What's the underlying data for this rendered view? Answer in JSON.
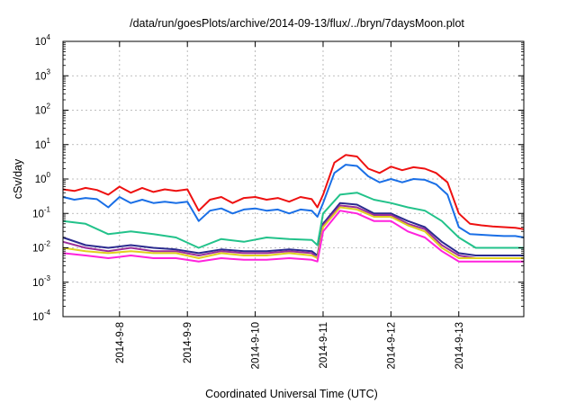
{
  "chart_data": {
    "type": "line",
    "title": "/data/run/goesPlots/archive/2014-09-13/flux/../bryn/7daysMoon.plot",
    "xlabel": "Coordinated Universal Time (UTC)",
    "ylabel": "cSv/day",
    "yscale": "log",
    "ylim": [
      0.0001,
      10000
    ],
    "xlim": [
      "2014-09-07T04:00",
      "2014-09-13T23:00"
    ],
    "grid": true,
    "y_ticks": [
      {
        "base": "10",
        "exp": "-4",
        "value": 0.0001
      },
      {
        "base": "10",
        "exp": "-3",
        "value": 0.001
      },
      {
        "base": "10",
        "exp": "-2",
        "value": 0.01
      },
      {
        "base": "10",
        "exp": "-1",
        "value": 0.1
      },
      {
        "base": "10",
        "exp": "0",
        "value": 1
      },
      {
        "base": "10",
        "exp": "1",
        "value": 10
      },
      {
        "base": "10",
        "exp": "2",
        "value": 100
      },
      {
        "base": "10",
        "exp": "3",
        "value": 1000
      },
      {
        "base": "10",
        "exp": "4",
        "value": 10000
      }
    ],
    "x_ticks": [
      {
        "label": "2014-9-8",
        "value": "2014-09-08T00:00"
      },
      {
        "label": "2014-9-9",
        "value": "2014-09-09T00:00"
      },
      {
        "label": "2014-9-10",
        "value": "2014-09-10T00:00"
      },
      {
        "label": "2014-9-11",
        "value": "2014-09-11T00:00"
      },
      {
        "label": "2014-9-12",
        "value": "2014-09-12T00:00"
      },
      {
        "label": "2014-9-13",
        "value": "2014-09-13T00:00"
      }
    ],
    "series": [
      {
        "color": "#ee1111",
        "x": [
          "2014-09-07T04:00",
          "2014-09-07T08:00",
          "2014-09-07T12:00",
          "2014-09-07T16:00",
          "2014-09-07T20:00",
          "2014-09-08T00:00",
          "2014-09-08T04:00",
          "2014-09-08T08:00",
          "2014-09-08T12:00",
          "2014-09-08T16:00",
          "2014-09-08T20:00",
          "2014-09-09T00:00",
          "2014-09-09T04:00",
          "2014-09-09T08:00",
          "2014-09-09T12:00",
          "2014-09-09T16:00",
          "2014-09-09T20:00",
          "2014-09-10T00:00",
          "2014-09-10T04:00",
          "2014-09-10T08:00",
          "2014-09-10T12:00",
          "2014-09-10T16:00",
          "2014-09-10T20:00",
          "2014-09-10T22:00",
          "2014-09-11T00:00",
          "2014-09-11T04:00",
          "2014-09-11T08:00",
          "2014-09-11T12:00",
          "2014-09-11T16:00",
          "2014-09-11T20:00",
          "2014-09-12T00:00",
          "2014-09-12T04:00",
          "2014-09-12T08:00",
          "2014-09-12T12:00",
          "2014-09-12T16:00",
          "2014-09-12T20:00",
          "2014-09-13T00:00",
          "2014-09-13T04:00",
          "2014-09-13T08:00",
          "2014-09-13T12:00",
          "2014-09-13T16:00",
          "2014-09-13T20:00",
          "2014-09-13T23:00"
        ],
        "y": [
          0.5,
          0.45,
          0.55,
          0.48,
          0.35,
          0.6,
          0.4,
          0.55,
          0.42,
          0.5,
          0.45,
          0.5,
          0.12,
          0.25,
          0.3,
          0.2,
          0.28,
          0.3,
          0.25,
          0.28,
          0.22,
          0.3,
          0.26,
          0.15,
          0.35,
          3.0,
          5.0,
          4.5,
          2.0,
          1.5,
          2.3,
          1.8,
          2.2,
          2.0,
          1.5,
          0.8,
          0.1,
          0.05,
          0.045,
          0.042,
          0.04,
          0.038,
          0.035
        ]
      },
      {
        "color": "#1a6fe6",
        "x": [
          "2014-09-07T04:00",
          "2014-09-07T08:00",
          "2014-09-07T12:00",
          "2014-09-07T16:00",
          "2014-09-07T20:00",
          "2014-09-08T00:00",
          "2014-09-08T04:00",
          "2014-09-08T08:00",
          "2014-09-08T12:00",
          "2014-09-08T16:00",
          "2014-09-08T20:00",
          "2014-09-09T00:00",
          "2014-09-09T04:00",
          "2014-09-09T08:00",
          "2014-09-09T12:00",
          "2014-09-09T16:00",
          "2014-09-09T20:00",
          "2014-09-10T00:00",
          "2014-09-10T04:00",
          "2014-09-10T08:00",
          "2014-09-10T12:00",
          "2014-09-10T16:00",
          "2014-09-10T20:00",
          "2014-09-10T22:00",
          "2014-09-11T00:00",
          "2014-09-11T04:00",
          "2014-09-11T08:00",
          "2014-09-11T12:00",
          "2014-09-11T16:00",
          "2014-09-11T20:00",
          "2014-09-12T00:00",
          "2014-09-12T04:00",
          "2014-09-12T08:00",
          "2014-09-12T12:00",
          "2014-09-12T16:00",
          "2014-09-12T20:00",
          "2014-09-13T00:00",
          "2014-09-13T04:00",
          "2014-09-13T08:00",
          "2014-09-13T12:00",
          "2014-09-13T16:00",
          "2014-09-13T20:00",
          "2014-09-13T23:00"
        ],
        "y": [
          0.3,
          0.25,
          0.28,
          0.26,
          0.15,
          0.3,
          0.2,
          0.25,
          0.2,
          0.22,
          0.2,
          0.22,
          0.06,
          0.12,
          0.14,
          0.1,
          0.13,
          0.14,
          0.12,
          0.13,
          0.1,
          0.13,
          0.12,
          0.08,
          0.2,
          1.5,
          2.6,
          2.4,
          1.2,
          0.8,
          1.0,
          0.8,
          1.0,
          0.95,
          0.7,
          0.35,
          0.04,
          0.025,
          0.024,
          0.023,
          0.022,
          0.022,
          0.02
        ]
      },
      {
        "color": "#22c28a",
        "x": [
          "2014-09-07T04:00",
          "2014-09-07T12:00",
          "2014-09-07T20:00",
          "2014-09-08T04:00",
          "2014-09-08T12:00",
          "2014-09-08T20:00",
          "2014-09-09T04:00",
          "2014-09-09T12:00",
          "2014-09-09T20:00",
          "2014-09-10T04:00",
          "2014-09-10T12:00",
          "2014-09-10T20:00",
          "2014-09-10T22:00",
          "2014-09-11T00:00",
          "2014-09-11T06:00",
          "2014-09-11T12:00",
          "2014-09-11T18:00",
          "2014-09-12T00:00",
          "2014-09-12T06:00",
          "2014-09-12T12:00",
          "2014-09-12T18:00",
          "2014-09-13T00:00",
          "2014-09-13T06:00",
          "2014-09-13T12:00",
          "2014-09-13T23:00"
        ],
        "y": [
          0.06,
          0.05,
          0.025,
          0.03,
          0.025,
          0.02,
          0.01,
          0.018,
          0.015,
          0.02,
          0.018,
          0.017,
          0.012,
          0.1,
          0.35,
          0.4,
          0.25,
          0.2,
          0.15,
          0.12,
          0.06,
          0.02,
          0.01,
          0.01,
          0.01
        ]
      },
      {
        "color": "#2b2b8f",
        "x": [
          "2014-09-07T04:00",
          "2014-09-07T12:00",
          "2014-09-07T20:00",
          "2014-09-08T04:00",
          "2014-09-08T12:00",
          "2014-09-08T20:00",
          "2014-09-09T04:00",
          "2014-09-09T12:00",
          "2014-09-09T20:00",
          "2014-09-10T04:00",
          "2014-09-10T12:00",
          "2014-09-10T20:00",
          "2014-09-10T22:00",
          "2014-09-11T00:00",
          "2014-09-11T06:00",
          "2014-09-11T12:00",
          "2014-09-11T18:00",
          "2014-09-12T00:00",
          "2014-09-12T06:00",
          "2014-09-12T12:00",
          "2014-09-12T18:00",
          "2014-09-13T00:00",
          "2014-09-13T06:00",
          "2014-09-13T12:00",
          "2014-09-13T23:00"
        ],
        "y": [
          0.02,
          0.012,
          0.01,
          0.012,
          0.01,
          0.009,
          0.007,
          0.009,
          0.008,
          0.008,
          0.009,
          0.008,
          0.006,
          0.05,
          0.2,
          0.18,
          0.1,
          0.1,
          0.06,
          0.04,
          0.015,
          0.007,
          0.006,
          0.006,
          0.006
        ]
      },
      {
        "color": "#9b2f9b",
        "x": [
          "2014-09-07T04:00",
          "2014-09-07T12:00",
          "2014-09-07T20:00",
          "2014-09-08T04:00",
          "2014-09-08T12:00",
          "2014-09-08T20:00",
          "2014-09-09T04:00",
          "2014-09-09T12:00",
          "2014-09-09T20:00",
          "2014-09-10T04:00",
          "2014-09-10T12:00",
          "2014-09-10T20:00",
          "2014-09-10T22:00",
          "2014-09-11T00:00",
          "2014-09-11T06:00",
          "2014-09-11T12:00",
          "2014-09-11T18:00",
          "2014-09-12T00:00",
          "2014-09-12T06:00",
          "2014-09-12T12:00",
          "2014-09-12T18:00",
          "2014-09-13T00:00",
          "2014-09-13T06:00",
          "2014-09-13T12:00",
          "2014-09-13T23:00"
        ],
        "y": [
          0.015,
          0.01,
          0.008,
          0.01,
          0.008,
          0.008,
          0.006,
          0.008,
          0.007,
          0.007,
          0.008,
          0.007,
          0.005,
          0.045,
          0.17,
          0.15,
          0.09,
          0.09,
          0.05,
          0.035,
          0.012,
          0.006,
          0.005,
          0.005,
          0.005
        ]
      },
      {
        "color": "#e0d020",
        "x": [
          "2014-09-07T04:00",
          "2014-09-07T12:00",
          "2014-09-07T20:00",
          "2014-09-08T04:00",
          "2014-09-08T12:00",
          "2014-09-08T20:00",
          "2014-09-09T04:00",
          "2014-09-09T12:00",
          "2014-09-09T20:00",
          "2014-09-10T04:00",
          "2014-09-10T12:00",
          "2014-09-10T20:00",
          "2014-09-10T22:00",
          "2014-09-11T00:00",
          "2014-09-11T06:00",
          "2014-09-11T12:00",
          "2014-09-11T18:00",
          "2014-09-12T00:00",
          "2014-09-12T06:00",
          "2014-09-12T12:00",
          "2014-09-12T18:00",
          "2014-09-13T00:00",
          "2014-09-13T06:00",
          "2014-09-13T12:00",
          "2014-09-13T23:00"
        ],
        "y": [
          0.01,
          0.008,
          0.007,
          0.008,
          0.007,
          0.007,
          0.005,
          0.007,
          0.006,
          0.006,
          0.007,
          0.006,
          0.005,
          0.04,
          0.15,
          0.13,
          0.08,
          0.08,
          0.045,
          0.03,
          0.01,
          0.005,
          0.005,
          0.005,
          0.005
        ]
      },
      {
        "color": "#ff22dd",
        "x": [
          "2014-09-07T04:00",
          "2014-09-07T12:00",
          "2014-09-07T20:00",
          "2014-09-08T04:00",
          "2014-09-08T12:00",
          "2014-09-08T20:00",
          "2014-09-09T04:00",
          "2014-09-09T12:00",
          "2014-09-09T20:00",
          "2014-09-10T04:00",
          "2014-09-10T12:00",
          "2014-09-10T20:00",
          "2014-09-10T22:00",
          "2014-09-11T00:00",
          "2014-09-11T06:00",
          "2014-09-11T12:00",
          "2014-09-11T18:00",
          "2014-09-12T00:00",
          "2014-09-12T06:00",
          "2014-09-12T12:00",
          "2014-09-12T18:00",
          "2014-09-13T00:00",
          "2014-09-13T06:00",
          "2014-09-13T12:00",
          "2014-09-13T23:00"
        ],
        "y": [
          0.007,
          0.006,
          0.005,
          0.006,
          0.005,
          0.005,
          0.004,
          0.005,
          0.0045,
          0.0045,
          0.005,
          0.0045,
          0.004,
          0.03,
          0.12,
          0.1,
          0.06,
          0.06,
          0.03,
          0.02,
          0.008,
          0.004,
          0.004,
          0.004,
          0.004
        ]
      }
    ]
  }
}
